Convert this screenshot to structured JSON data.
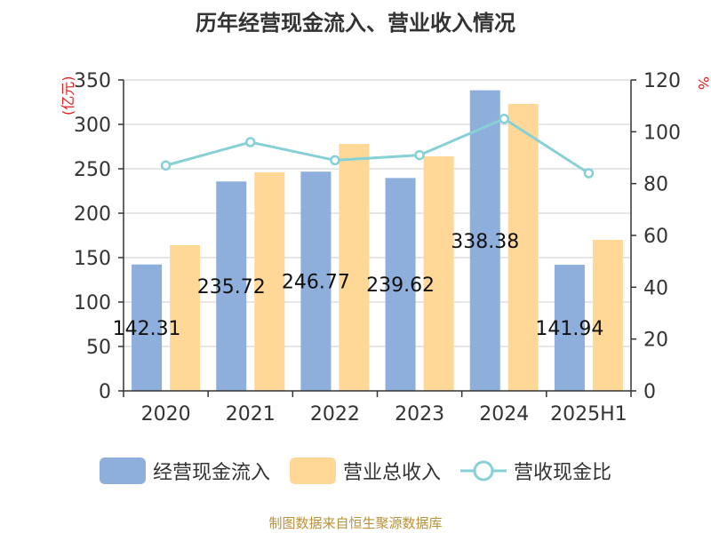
{
  "chart_data": {
    "type": "bar",
    "title": "历年经营现金流入、营业收入情况",
    "categories": [
      "2020",
      "2021",
      "2022",
      "2023",
      "2024",
      "2025H1"
    ],
    "series": [
      {
        "name": "经营现金流入",
        "type": "bar",
        "axis": "left",
        "color": "#8eaedb",
        "values": [
          142.31,
          235.72,
          246.77,
          239.62,
          338.38,
          141.94
        ]
      },
      {
        "name": "营业总收入",
        "type": "bar",
        "axis": "left",
        "color": "#ffd898",
        "values": [
          164,
          246,
          278,
          264,
          323,
          170
        ]
      },
      {
        "name": "营收现金比",
        "type": "line",
        "axis": "right",
        "color": "#86d0d6",
        "values": [
          87,
          96,
          89,
          91,
          105,
          84
        ]
      }
    ],
    "data_labels": [
      "142.31",
      "235.72",
      "246.77",
      "239.62",
      "338.38",
      "141.94"
    ],
    "y_left": {
      "label": "(亿元)",
      "ylim": [
        0,
        350
      ],
      "ticks": [
        0,
        50,
        100,
        150,
        200,
        250,
        300,
        350
      ]
    },
    "y_right": {
      "label": "%",
      "ylim": [
        0,
        120
      ],
      "ticks": [
        0,
        20,
        40,
        60,
        80,
        100,
        120
      ]
    },
    "grid": true,
    "legend_position": "bottom"
  },
  "source": "制图数据来自恒生聚源数据库"
}
